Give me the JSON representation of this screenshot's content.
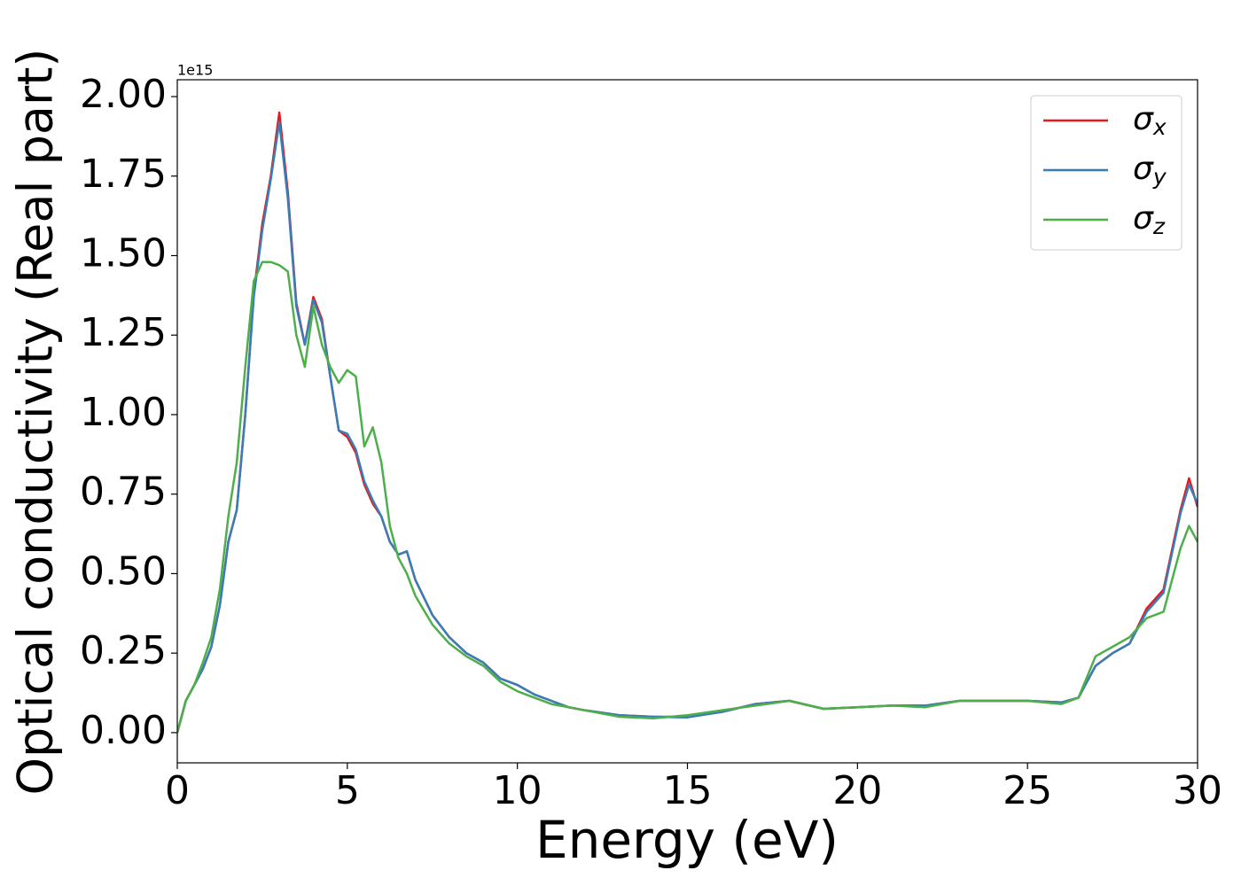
{
  "chart_data": {
    "type": "line",
    "xlabel": "Energy (eV)",
    "ylabel": "Optical conductivity (Real part)",
    "y_offset_label": "1e15",
    "x": [
      0,
      0.25,
      0.5,
      0.75,
      1,
      1.25,
      1.5,
      1.75,
      2,
      2.25,
      2.5,
      2.75,
      3,
      3.25,
      3.5,
      3.75,
      4,
      4.25,
      4.5,
      4.75,
      5,
      5.25,
      5.5,
      5.75,
      6,
      6.25,
      6.5,
      6.75,
      7,
      7.5,
      8,
      8.5,
      9,
      9.5,
      10,
      10.5,
      11,
      11.5,
      12,
      13,
      14,
      15,
      16,
      17,
      18,
      19,
      20,
      21,
      22,
      23,
      24,
      25,
      26,
      26.5,
      27,
      27.5,
      28,
      28.5,
      29,
      29.5,
      29.75,
      30
    ],
    "series": [
      {
        "name": "σx",
        "color": "#e41a1c",
        "values": [
          0,
          0.1,
          0.15,
          0.2,
          0.27,
          0.4,
          0.6,
          0.7,
          1.0,
          1.38,
          1.6,
          1.75,
          1.95,
          1.7,
          1.35,
          1.22,
          1.37,
          1.3,
          1.12,
          0.95,
          0.93,
          0.88,
          0.78,
          0.72,
          0.68,
          0.6,
          0.56,
          0.57,
          0.48,
          0.37,
          0.3,
          0.25,
          0.22,
          0.17,
          0.15,
          0.12,
          0.1,
          0.08,
          0.07,
          0.055,
          0.05,
          0.05,
          0.065,
          0.09,
          0.1,
          0.075,
          0.08,
          0.085,
          0.085,
          0.1,
          0.1,
          0.1,
          0.095,
          0.11,
          0.21,
          0.25,
          0.28,
          0.39,
          0.45,
          0.7,
          0.8,
          0.71
        ]
      },
      {
        "name": "σy",
        "color": "#377eb8",
        "values": [
          0,
          0.1,
          0.15,
          0.2,
          0.27,
          0.4,
          0.6,
          0.7,
          1.0,
          1.37,
          1.58,
          1.74,
          1.92,
          1.68,
          1.34,
          1.22,
          1.36,
          1.29,
          1.12,
          0.95,
          0.94,
          0.89,
          0.79,
          0.73,
          0.68,
          0.6,
          0.56,
          0.57,
          0.48,
          0.37,
          0.3,
          0.25,
          0.22,
          0.17,
          0.15,
          0.12,
          0.1,
          0.08,
          0.07,
          0.055,
          0.05,
          0.048,
          0.065,
          0.09,
          0.1,
          0.075,
          0.08,
          0.085,
          0.085,
          0.1,
          0.1,
          0.1,
          0.095,
          0.11,
          0.21,
          0.25,
          0.28,
          0.38,
          0.44,
          0.69,
          0.78,
          0.72
        ]
      },
      {
        "name": "σz",
        "color": "#4daf4a",
        "values": [
          0,
          0.1,
          0.15,
          0.22,
          0.3,
          0.45,
          0.68,
          0.85,
          1.15,
          1.42,
          1.48,
          1.48,
          1.47,
          1.45,
          1.25,
          1.15,
          1.34,
          1.22,
          1.15,
          1.1,
          1.14,
          1.12,
          0.9,
          0.96,
          0.85,
          0.65,
          0.55,
          0.5,
          0.43,
          0.34,
          0.28,
          0.24,
          0.21,
          0.16,
          0.13,
          0.11,
          0.09,
          0.08,
          0.07,
          0.05,
          0.045,
          0.055,
          0.07,
          0.085,
          0.1,
          0.075,
          0.08,
          0.085,
          0.08,
          0.1,
          0.1,
          0.1,
          0.09,
          0.11,
          0.24,
          0.27,
          0.3,
          0.36,
          0.38,
          0.58,
          0.65,
          0.6
        ]
      }
    ],
    "xlim": [
      0,
      30
    ],
    "xticks": [
      0,
      5,
      10,
      15,
      20,
      25,
      30
    ],
    "ylim": [
      -0.095,
      2.053
    ],
    "yticks": [
      {
        "value": 0,
        "label": "0.00"
      },
      0.25,
      {
        "value": 0.5,
        "label": "0.50"
      },
      0.75,
      {
        "value": 1,
        "label": "1.00"
      },
      1.25,
      {
        "value": 1.5,
        "label": "1.50"
      },
      1.75,
      {
        "value": 2,
        "label": "2.00"
      }
    ],
    "grid": false,
    "legend": "upper right"
  }
}
